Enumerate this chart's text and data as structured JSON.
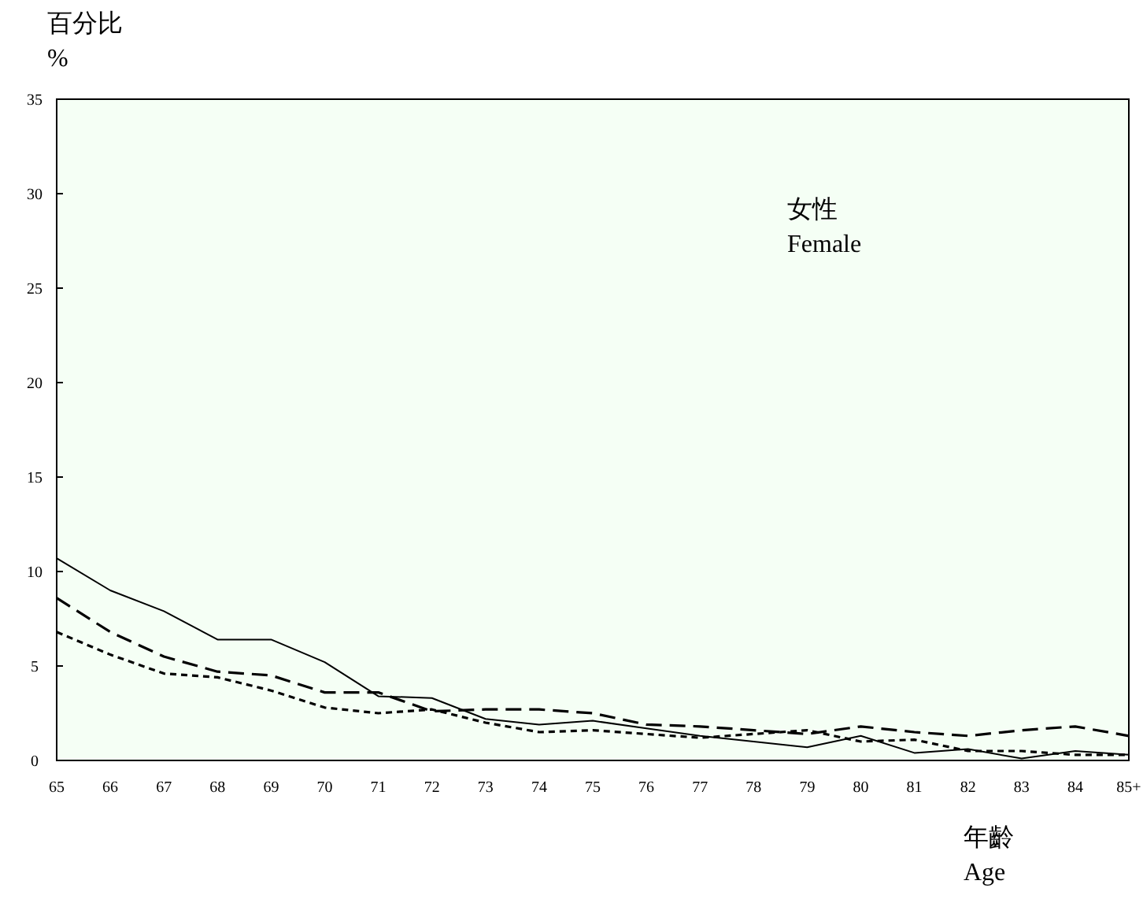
{
  "chart_data": {
    "type": "line",
    "ylabel": "百分比\n%",
    "xlabel": "年齡\nAge",
    "annotations": [
      "女性\nFemale"
    ],
    "categories": [
      "65",
      "66",
      "67",
      "68",
      "69",
      "70",
      "71",
      "72",
      "73",
      "74",
      "75",
      "76",
      "77",
      "78",
      "79",
      "80",
      "81",
      "82",
      "83",
      "84",
      "85+"
    ],
    "ylim": [
      0,
      35
    ],
    "yticks": [
      0,
      5,
      10,
      15,
      20,
      25,
      30,
      35
    ],
    "grid": false,
    "marker": "none",
    "series": [
      {
        "color": "#000000",
        "line_style": "solid",
        "values": [
          10.7,
          9.0,
          7.9,
          6.4,
          6.4,
          5.2,
          3.4,
          3.3,
          2.2,
          1.9,
          2.1,
          1.7,
          1.3,
          1.0,
          0.7,
          1.3,
          0.4,
          0.6,
          0.1,
          0.5,
          0.3
        ]
      },
      {
        "color": "#000000",
        "line_style": "dashed",
        "values": [
          8.6,
          6.8,
          5.5,
          4.7,
          4.5,
          3.6,
          3.6,
          2.6,
          2.7,
          2.7,
          2.5,
          1.9,
          1.8,
          1.6,
          1.4,
          1.8,
          1.5,
          1.3,
          1.6,
          1.8,
          1.3
        ]
      },
      {
        "color": "#000000",
        "line_style": "dotted",
        "values": [
          6.8,
          5.6,
          4.6,
          4.4,
          3.7,
          2.8,
          2.5,
          2.7,
          2.0,
          1.5,
          1.6,
          1.4,
          1.2,
          1.4,
          1.6,
          1.0,
          1.1,
          0.5,
          0.5,
          0.3,
          0.3
        ]
      }
    ]
  }
}
